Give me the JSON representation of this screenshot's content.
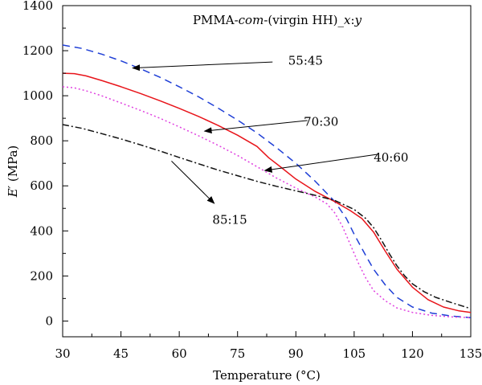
{
  "chart_data": {
    "type": "line",
    "title_parts": [
      {
        "text": "PMMA-",
        "italic": false
      },
      {
        "text": "com",
        "italic": true
      },
      {
        "text": "-(virgin HH)_",
        "italic": false
      },
      {
        "text": "x",
        "italic": true
      },
      {
        "text": ":",
        "italic": false
      },
      {
        "text": "y",
        "italic": true
      }
    ],
    "xlabel": "Temperature (°C)",
    "ylabel_parts": [
      {
        "text": "E′",
        "italic": true
      },
      {
        "text": " (MPa)",
        "italic": false
      }
    ],
    "xlim": [
      30,
      135
    ],
    "ylim": [
      -70,
      1400
    ],
    "xticks": [
      30,
      45,
      60,
      75,
      90,
      105,
      120,
      135
    ],
    "yticks": [
      0,
      200,
      400,
      600,
      800,
      1000,
      1200,
      1400
    ],
    "grid": false,
    "series": [
      {
        "name": "55:45",
        "color": "#1f3fd6",
        "dash": "9,6",
        "points": [
          [
            30,
            1225
          ],
          [
            35,
            1210
          ],
          [
            40,
            1185
          ],
          [
            45,
            1155
          ],
          [
            50,
            1120
          ],
          [
            55,
            1082
          ],
          [
            60,
            1040
          ],
          [
            65,
            995
          ],
          [
            70,
            945
          ],
          [
            75,
            892
          ],
          [
            80,
            835
          ],
          [
            85,
            770
          ],
          [
            90,
            700
          ],
          [
            95,
            620
          ],
          [
            100,
            530
          ],
          [
            103,
            455
          ],
          [
            105,
            385
          ],
          [
            108,
            290
          ],
          [
            110,
            230
          ],
          [
            113,
            160
          ],
          [
            116,
            105
          ],
          [
            120,
            62
          ],
          [
            125,
            35
          ],
          [
            130,
            22
          ],
          [
            135,
            15
          ]
        ]
      },
      {
        "name": "70:30",
        "color": "#e8141a",
        "dash": "",
        "points": [
          [
            30,
            1100
          ],
          [
            33,
            1098
          ],
          [
            36,
            1088
          ],
          [
            40,
            1068
          ],
          [
            45,
            1040
          ],
          [
            50,
            1010
          ],
          [
            55,
            978
          ],
          [
            60,
            944
          ],
          [
            65,
            908
          ],
          [
            70,
            868
          ],
          [
            75,
            825
          ],
          [
            80,
            775
          ],
          [
            83,
            725
          ],
          [
            86,
            685
          ],
          [
            90,
            630
          ],
          [
            95,
            575
          ],
          [
            100,
            530
          ],
          [
            104,
            490
          ],
          [
            107,
            455
          ],
          [
            110,
            395
          ],
          [
            113,
            310
          ],
          [
            116,
            230
          ],
          [
            120,
            150
          ],
          [
            124,
            95
          ],
          [
            128,
            62
          ],
          [
            132,
            45
          ],
          [
            135,
            38
          ]
        ]
      },
      {
        "name": "40:60",
        "color": "#e040e0",
        "dash": "2,3",
        "points": [
          [
            30,
            1040
          ],
          [
            33,
            1035
          ],
          [
            36,
            1022
          ],
          [
            40,
            1000
          ],
          [
            45,
            968
          ],
          [
            50,
            935
          ],
          [
            55,
            900
          ],
          [
            60,
            862
          ],
          [
            65,
            822
          ],
          [
            70,
            780
          ],
          [
            75,
            735
          ],
          [
            80,
            685
          ],
          [
            85,
            635
          ],
          [
            90,
            590
          ],
          [
            95,
            550
          ],
          [
            98,
            520
          ],
          [
            100,
            480
          ],
          [
            102,
            420
          ],
          [
            104,
            340
          ],
          [
            106,
            260
          ],
          [
            108,
            190
          ],
          [
            110,
            135
          ],
          [
            113,
            90
          ],
          [
            116,
            58
          ],
          [
            120,
            38
          ],
          [
            125,
            25
          ],
          [
            130,
            18
          ],
          [
            135,
            15
          ]
        ]
      },
      {
        "name": "85:15",
        "color": "#111111",
        "dash": "8,3,2,3",
        "points": [
          [
            30,
            872
          ],
          [
            35,
            855
          ],
          [
            40,
            832
          ],
          [
            45,
            808
          ],
          [
            50,
            782
          ],
          [
            55,
            755
          ],
          [
            60,
            726
          ],
          [
            65,
            698
          ],
          [
            70,
            670
          ],
          [
            75,
            645
          ],
          [
            80,
            620
          ],
          [
            85,
            598
          ],
          [
            90,
            578
          ],
          [
            95,
            558
          ],
          [
            100,
            535
          ],
          [
            105,
            495
          ],
          [
            108,
            455
          ],
          [
            110,
            415
          ],
          [
            112,
            360
          ],
          [
            114,
            300
          ],
          [
            116,
            245
          ],
          [
            118,
            200
          ],
          [
            120,
            165
          ],
          [
            123,
            130
          ],
          [
            126,
            105
          ],
          [
            130,
            82
          ],
          [
            135,
            55
          ]
        ]
      }
    ],
    "annotations": [
      {
        "label": "55:45",
        "text_x": 92.5,
        "text_y": 1155,
        "arrow_from": [
          84,
          1150
        ],
        "arrow_to": [
          48,
          1123
        ]
      },
      {
        "label": "70:30",
        "text_x": 96.5,
        "text_y": 885,
        "arrow_from": [
          93,
          890
        ],
        "arrow_to": [
          66.5,
          843
        ]
      },
      {
        "label": "40:60",
        "text_x": 114.5,
        "text_y": 725,
        "arrow_from": [
          111,
          740
        ],
        "arrow_to": [
          82,
          668
        ]
      },
      {
        "label": "85:15",
        "text_x": 73,
        "text_y": 450,
        "arrow_from": [
          58,
          710
        ],
        "arrow_to": [
          69,
          522
        ]
      }
    ]
  }
}
